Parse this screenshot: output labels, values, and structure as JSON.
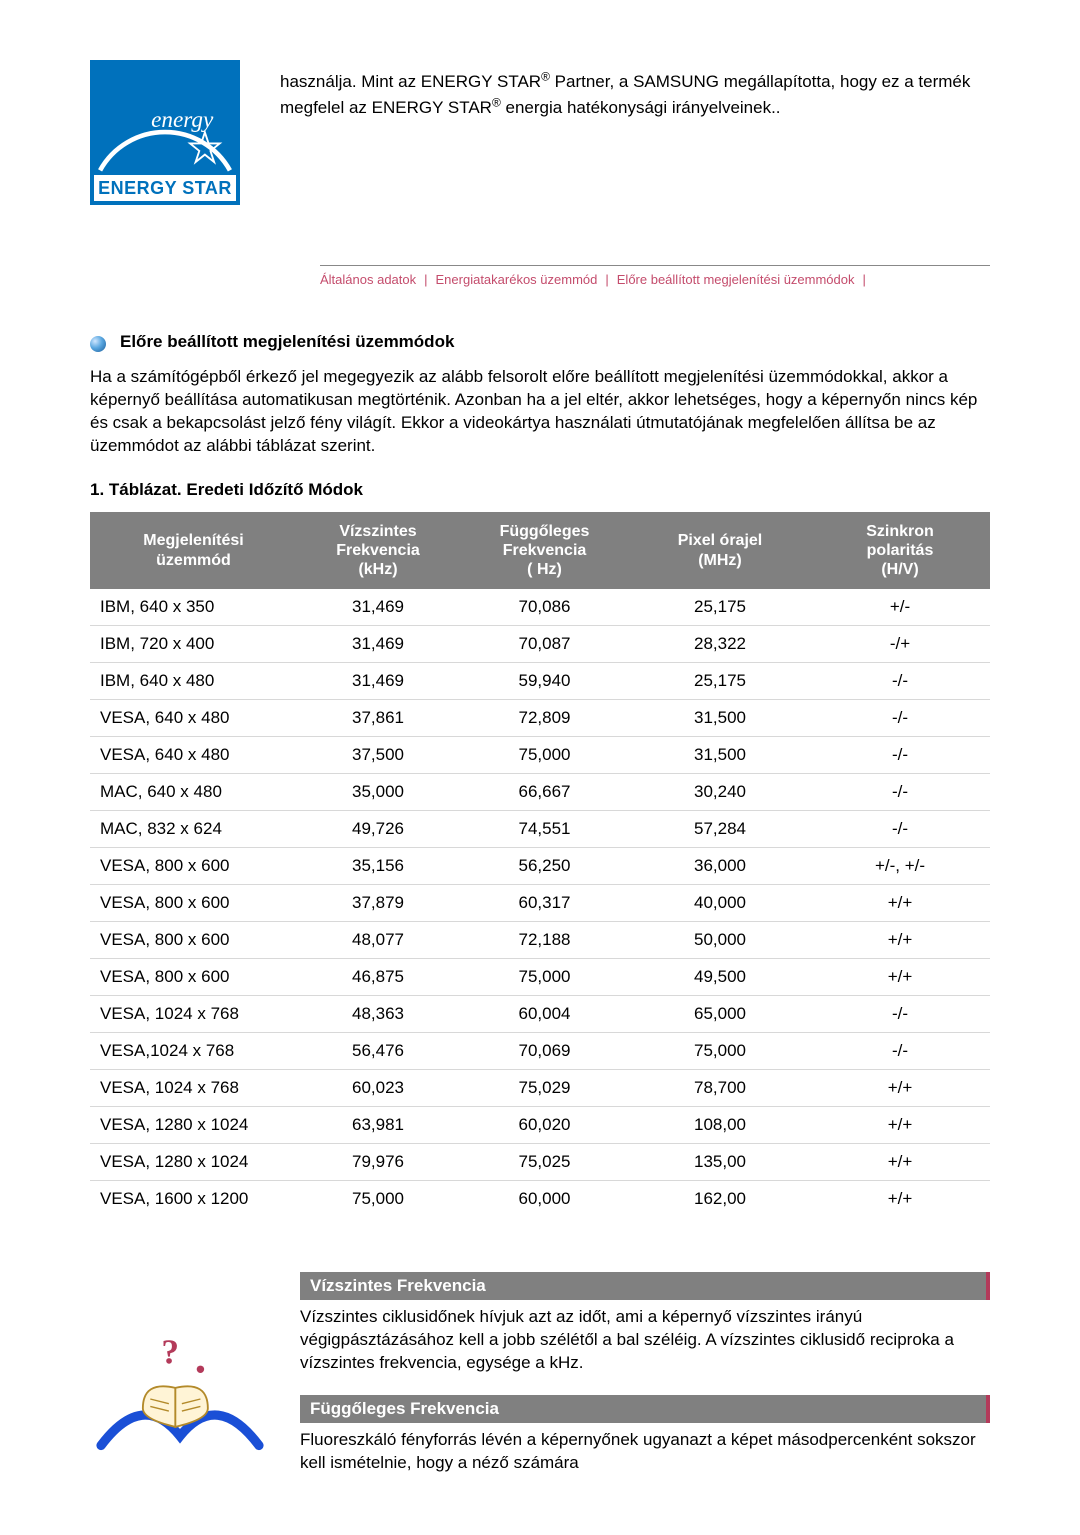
{
  "logo": {
    "band_text": "ENERGY STAR",
    "bg_color": "#0071bc",
    "band_bg": "#ffffff",
    "band_text_color": "#0071bc"
  },
  "intro_text": "használja. Mint az ENERGY STAR® Partner, a SAMSUNG megállapította, hogy ez a termék megfelel az ENERGY STAR® energia hatékonysági irányelveinek..",
  "nav": {
    "items": [
      "Általános adatok",
      "Energiatakarékos üzemmód",
      "Előre beállított megjelenítési üzemmódok"
    ],
    "sep": "|",
    "color": "#c44c6c",
    "rule_color": "#888888",
    "fontsize": 13
  },
  "section": {
    "title": "Előre beállított megjelenítési üzemmódok",
    "para": "Ha a számítógépből érkező jel megegyezik az alább felsorolt előre beállított megjelenítési üzemmódokkal, akkor a képernyő beállítása automatikusan megtörténik. Azonban ha a jel eltér, akkor lehetséges, hogy a képernyőn nincs kép és csak a bekapcsolást jelző fény világít. Ekkor a videokártya használati útmutatójának megfelelően állítsa be az üzemmódot az alábbi táblázat szerint.",
    "table_caption": "1. Táblázat. Eredeti Időzítő Módok"
  },
  "table": {
    "header_bg": "#808080",
    "header_fg": "#ffffff",
    "row_border": "#d8d8d8",
    "fontsize": 17,
    "columns": [
      "Megjelenítési üzemmód",
      "Vízszintes Frekvencia (kHz)",
      "Függőleges Frekvencia ( Hz)",
      "Pixel órajel (MHz)",
      "Szinkron polaritás (H/V)"
    ],
    "rows": [
      [
        "IBM, 640 x 350",
        "31,469",
        "70,086",
        "25,175",
        "+/-"
      ],
      [
        "IBM, 720 x 400",
        "31,469",
        "70,087",
        "28,322",
        "-/+"
      ],
      [
        "IBM, 640 x 480",
        "31,469",
        "59,940",
        "25,175",
        "-/-"
      ],
      [
        "VESA, 640 x 480",
        "37,861",
        "72,809",
        "31,500",
        "-/-"
      ],
      [
        "VESA, 640 x 480",
        "37,500",
        "75,000",
        "31,500",
        "-/-"
      ],
      [
        "MAC, 640 x 480",
        "35,000",
        "66,667",
        "30,240",
        "-/-"
      ],
      [
        "MAC, 832 x 624",
        "49,726",
        "74,551",
        "57,284",
        "-/-"
      ],
      [
        "VESA, 800 x 600",
        "35,156",
        "56,250",
        "36,000",
        "+/-, +/-"
      ],
      [
        "VESA, 800 x 600",
        "37,879",
        "60,317",
        "40,000",
        "+/+"
      ],
      [
        "VESA, 800 x 600",
        "48,077",
        "72,188",
        "50,000",
        "+/+"
      ],
      [
        "VESA, 800 x 600",
        "46,875",
        "75,000",
        "49,500",
        "+/+"
      ],
      [
        "VESA, 1024 x 768",
        "48,363",
        "60,004",
        "65,000",
        "-/-"
      ],
      [
        "VESA,1024 x 768",
        "56,476",
        "70,069",
        "75,000",
        "-/-"
      ],
      [
        "VESA, 1024 x 768",
        "60,023",
        "75,029",
        "78,700",
        "+/+"
      ],
      [
        "VESA, 1280 x 1024",
        "63,981",
        "60,020",
        "108,00",
        "+/+"
      ],
      [
        "VESA, 1280 x 1024",
        "79,976",
        "75,025",
        "135,00",
        "+/+"
      ],
      [
        "VESA, 1600 x 1200",
        "75,000",
        "60,000",
        "162,00",
        "+/+"
      ]
    ]
  },
  "defs": {
    "header_bg": "#808080",
    "header_fg": "#ffffff",
    "accent": "#b33a5a",
    "items": [
      {
        "title": "Vízszintes Frekvencia",
        "body": "Vízszintes ciklusidőnek hívjuk azt az időt, ami a képernyő vízszintes irányú végigpásztázásához kell a jobb szélétől a bal széléig. A vízszintes ciklusidő reciproka a vízszintes frekvencia, egysége a kHz."
      },
      {
        "title": "Függőleges Frekvencia",
        "body": "Fluoreszkáló fényforrás lévén a képernyőnek ugyanazt a képet másodpercenként sokszor kell ismételnie, hogy a néző számára"
      }
    ]
  },
  "book_icon": {
    "swoosh_color": "#1a4fd6",
    "page_fill": "#fff4d6",
    "page_stroke": "#b38a2a",
    "qmark_color": "#b33a5a"
  }
}
